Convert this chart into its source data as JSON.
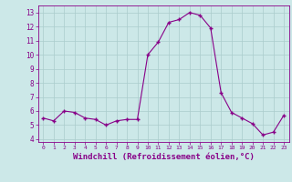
{
  "x": [
    0,
    1,
    2,
    3,
    4,
    5,
    6,
    7,
    8,
    9,
    10,
    11,
    12,
    13,
    14,
    15,
    16,
    17,
    18,
    19,
    20,
    21,
    22,
    23
  ],
  "y": [
    5.5,
    5.3,
    6.0,
    5.9,
    5.5,
    5.4,
    5.0,
    5.3,
    5.4,
    5.4,
    10.0,
    10.9,
    12.3,
    12.5,
    13.0,
    12.8,
    11.9,
    7.3,
    5.9,
    5.5,
    5.1,
    4.3,
    4.5,
    5.7
  ],
  "line_color": "#880088",
  "marker": "+",
  "marker_size": 3.5,
  "bg_color": "#cce8e8",
  "grid_color": "#aacccc",
  "xlabel": "Windchill (Refroidissement éolien,°C)",
  "xlabel_fontsize": 6.5,
  "ylabel_ticks": [
    4,
    5,
    6,
    7,
    8,
    9,
    10,
    11,
    12,
    13
  ],
  "xtick_labels": [
    "0",
    "1",
    "2",
    "3",
    "4",
    "5",
    "6",
    "7",
    "8",
    "9",
    "10",
    "11",
    "12",
    "13",
    "14",
    "15",
    "16",
    "17",
    "18",
    "19",
    "20",
    "21",
    "22",
    "23"
  ],
  "ylim": [
    3.8,
    13.5
  ],
  "xlim": [
    -0.5,
    23.5
  ]
}
